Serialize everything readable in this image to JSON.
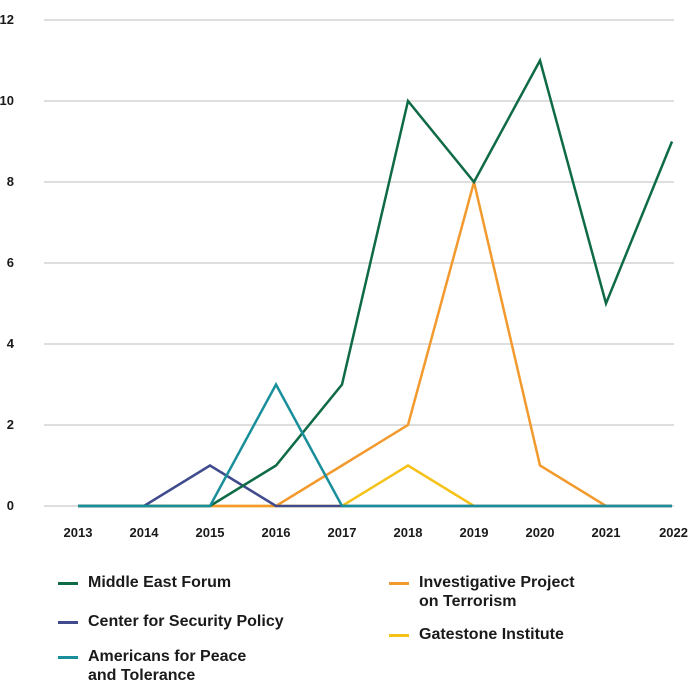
{
  "chart_data": {
    "type": "line",
    "title": "",
    "xlabel": "",
    "ylabel": "",
    "x": [
      "2013",
      "2014",
      "2015",
      "2016",
      "2017",
      "2018",
      "2019",
      "2020",
      "2021",
      "2022"
    ],
    "ylim": [
      0,
      12
    ],
    "yticks": [
      "0",
      "2",
      "4",
      "6",
      "8",
      "10",
      "12"
    ],
    "grid": true,
    "legend_position": "bottom",
    "series": [
      {
        "name": "Gatestone Institute",
        "color": "#f6c21a",
        "values": [
          0,
          0,
          0,
          0,
          0,
          1,
          0,
          0,
          0,
          0
        ]
      },
      {
        "name": "Investigative Project\non Terrorism",
        "color": "#f29a2e",
        "values": [
          0,
          0,
          0,
          0,
          1,
          2,
          8,
          1,
          0,
          0
        ]
      },
      {
        "name": "Center for Security Policy",
        "color": "#3f4b8c",
        "values": [
          0,
          0,
          1,
          0,
          0,
          0,
          0,
          0,
          0,
          0
        ]
      },
      {
        "name": "Middle East Forum",
        "color": "#0f6b45",
        "values": [
          0,
          0,
          0,
          1,
          3,
          10,
          8,
          11,
          5,
          9
        ]
      },
      {
        "name": "Americans for Peace\nand Tolerance",
        "color": "#1a8f9c",
        "values": [
          0,
          0,
          0,
          3,
          0,
          0,
          0,
          0,
          0,
          0
        ]
      }
    ]
  }
}
